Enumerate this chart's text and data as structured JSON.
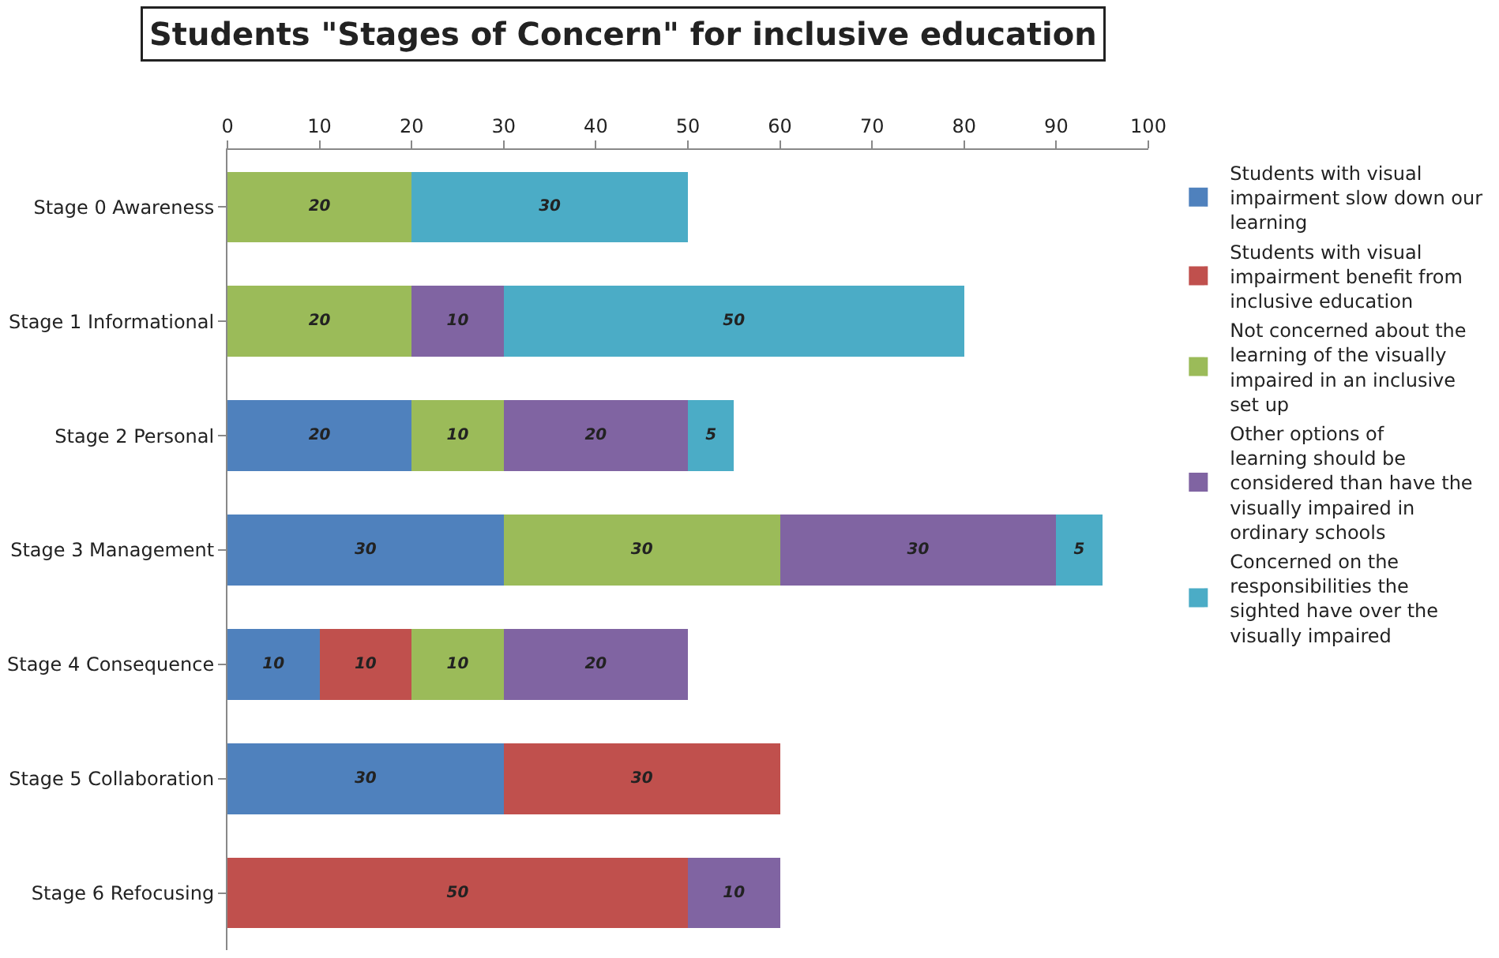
{
  "chart_data": {
    "type": "bar",
    "orientation": "horizontal",
    "stacked": true,
    "title": "Students \"Stages of Concern\" for inclusive education",
    "categories": [
      "Stage 0 Awareness",
      "Stage 1 Informational",
      "Stage 2 Personal",
      "Stage 3 Management",
      "Stage 4 Consequence",
      "Stage 5 Collaboration",
      "Stage 6 Refocusing"
    ],
    "series": [
      {
        "name": "Students with visual impairment slow down our learning",
        "color": "#4f81bd",
        "values": [
          null,
          null,
          20,
          30,
          10,
          30,
          null
        ]
      },
      {
        "name": "Students with visual impairment benefit from inclusive education",
        "color": "#c0504d",
        "values": [
          null,
          null,
          null,
          null,
          10,
          30,
          50
        ]
      },
      {
        "name": "Not concerned about the learning of the visually impaired in an inclusive set up",
        "color": "#9bbb59",
        "values": [
          20,
          20,
          10,
          30,
          10,
          null,
          null
        ]
      },
      {
        "name": "Other options of learning should be considered than have the visually impaired in ordinary schools",
        "color": "#8064a2",
        "values": [
          null,
          10,
          20,
          30,
          20,
          null,
          10
        ]
      },
      {
        "name": "Concerned on the responsibilities the sighted have over the visually impaired",
        "color": "#4bacc6",
        "values": [
          30,
          50,
          5,
          5,
          null,
          null,
          null
        ]
      }
    ],
    "xlim": [
      0,
      100
    ],
    "xticks": [
      0,
      10,
      20,
      30,
      40,
      50,
      60,
      70,
      80,
      90,
      100
    ],
    "legend": "right",
    "data_labels": true
  }
}
